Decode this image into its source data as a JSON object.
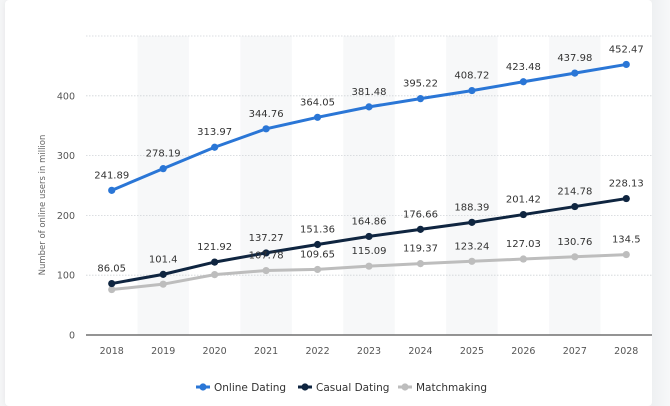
{
  "chart_data": {
    "type": "line",
    "title": "",
    "xlabel": "",
    "ylabel": "Number of online users in million",
    "ylim": [
      0,
      500
    ],
    "yticks": [
      0,
      100,
      200,
      300,
      400
    ],
    "grid": true,
    "legend_position": "bottom",
    "categories": [
      "2018",
      "2019",
      "2020",
      "2021",
      "2022",
      "2023",
      "2024",
      "2025",
      "2026",
      "2027",
      "2028"
    ],
    "series": [
      {
        "name": "Online Dating",
        "color": "#2a76d6",
        "values": [
          241.89,
          278.19,
          313.97,
          344.76,
          364.05,
          381.48,
          395.22,
          408.72,
          423.48,
          437.98,
          452.47
        ],
        "labels": [
          "241.89",
          "278.19",
          "313.97",
          "344.76",
          "364.05",
          "381.48",
          "395.22",
          "408.72",
          "423.48",
          "437.98",
          "452.47"
        ]
      },
      {
        "name": "Casual Dating",
        "color": "#0f2540",
        "values": [
          86.05,
          101.4,
          121.92,
          137.27,
          151.36,
          164.86,
          176.66,
          188.39,
          201.42,
          214.78,
          228.13
        ],
        "labels": [
          "86.05",
          "101.4",
          "121.92",
          "137.27",
          "151.36",
          "164.86",
          "176.66",
          "188.39",
          "201.42",
          "214.78",
          "228.13"
        ]
      },
      {
        "name": "Matchmaking",
        "color": "#bdbdbd",
        "values": [
          76,
          85,
          101,
          107.78,
          109.65,
          115.09,
          119.37,
          123.24,
          127.03,
          130.76,
          134.5
        ],
        "labels": [
          "",
          "",
          "",
          "107.78",
          "109.65",
          "115.09",
          "119.37",
          "123.24",
          "127.03",
          "130.76",
          "134.5"
        ]
      }
    ]
  }
}
